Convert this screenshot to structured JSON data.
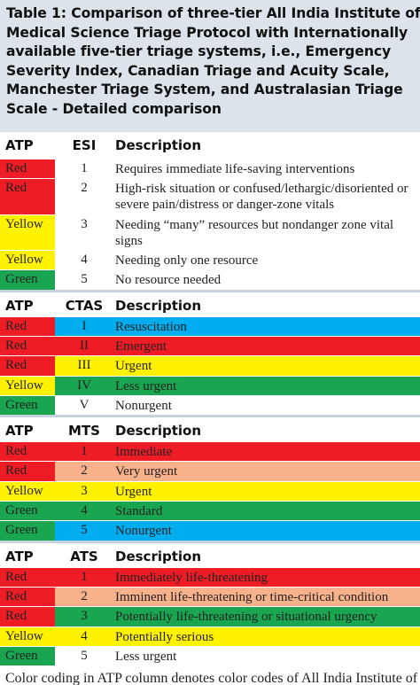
{
  "caption": {
    "lines": [
      "Table 1: Comparison of three-tier All India Institute of",
      "Medical Science Triage Protocol with Internationally",
      "available five-tier triage systems, i.e., Emergency",
      "Severity Index, Canadian Triage and Acuity Scale,",
      "Manchester Triage System, and Australasian Triage",
      "Scale - Detailed comparison"
    ]
  },
  "sections": [
    {
      "header": {
        "atp": "ATP",
        "system": "ESI",
        "description": "Description"
      },
      "rows": [
        {
          "atp": "Red",
          "level": "1",
          "description": "Requires immediate life-saving interventions",
          "atp_color": "#ee1c25",
          "row_color": "#ffffff"
        },
        {
          "atp": "Red",
          "level": "2",
          "description": "High-risk situation or confused/lethargic/disoriented or severe pain/distress or danger-zone vitals",
          "atp_color": "#ee1c25",
          "row_color": "#ffffff"
        },
        {
          "atp": "Yellow",
          "level": "3",
          "description": "Needing “many” resources but nondanger zone vital signs",
          "atp_color": "#fff200",
          "row_color": "#ffffff"
        },
        {
          "atp": "Yellow",
          "level": "4",
          "description": "Needing only one resource",
          "atp_color": "#fff200",
          "row_color": "#ffffff"
        },
        {
          "atp": "Green",
          "level": "5",
          "description": "No resource needed",
          "atp_color": "#1aa550",
          "row_color": "#ffffff"
        }
      ]
    },
    {
      "header": {
        "atp": "ATP",
        "system": "CTAS",
        "description": "Description"
      },
      "rows": [
        {
          "atp": "Red",
          "level": "I",
          "description": "Resuscitation",
          "atp_color": "#ee1c25",
          "row_color": "#00aeef"
        },
        {
          "atp": "Red",
          "level": "II",
          "description": "Emergent",
          "atp_color": "#ee1c25",
          "row_color": "#ee1c25"
        },
        {
          "atp": "Red",
          "level": "III",
          "description": "Urgent",
          "atp_color": "#ee1c25",
          "row_color": "#fff200"
        },
        {
          "atp": "Yellow",
          "level": "IV",
          "description": "Less urgent",
          "atp_color": "#fff200",
          "row_color": "#1aa550"
        },
        {
          "atp": "Green",
          "level": "V",
          "description": "Nonurgent",
          "atp_color": "#1aa550",
          "row_color": "#ffffff"
        }
      ]
    },
    {
      "header": {
        "atp": "ATP",
        "system": "MTS",
        "description": "Description"
      },
      "rows": [
        {
          "atp": "Red",
          "level": "1",
          "description": "Immediate",
          "atp_color": "#ee1c25",
          "row_color": "#ee1c25"
        },
        {
          "atp": "Red",
          "level": "2",
          "description": "Very urgent",
          "atp_color": "#ee1c25",
          "row_color": "#f7b18b"
        },
        {
          "atp": "Yellow",
          "level": "3",
          "description": "Urgent",
          "atp_color": "#fff200",
          "row_color": "#fff200"
        },
        {
          "atp": "Green",
          "level": "4",
          "description": "Standard",
          "atp_color": "#1aa550",
          "row_color": "#1aa550"
        },
        {
          "atp": "Green",
          "level": "5",
          "description": "Nonurgent",
          "atp_color": "#1aa550",
          "row_color": "#00aeef"
        }
      ]
    },
    {
      "header": {
        "atp": "ATP",
        "system": "ATS",
        "description": "Description"
      },
      "rows": [
        {
          "atp": "Red",
          "level": "1",
          "description": "Immediately life-threatening",
          "atp_color": "#ee1c25",
          "row_color": "#ee1c25"
        },
        {
          "atp": "Red",
          "level": "2",
          "description": "Imminent life-threatening or time-critical condition",
          "atp_color": "#ee1c25",
          "row_color": "#f7b18b"
        },
        {
          "atp": "Red",
          "level": "3",
          "description": "Potentially life-threatening or situational urgency",
          "atp_color": "#ee1c25",
          "row_color": "#1aa550"
        },
        {
          "atp": "Yellow",
          "level": "4",
          "description": "Potentially serious",
          "atp_color": "#fff200",
          "row_color": "#fff200"
        },
        {
          "atp": "Green",
          "level": "5",
          "description": "Less urgent",
          "atp_color": "#1aa550",
          "row_color": "#ffffff"
        }
      ]
    }
  ],
  "footer": {
    "text": "Color coding in ATP column denotes color codes of All India Institute of"
  }
}
